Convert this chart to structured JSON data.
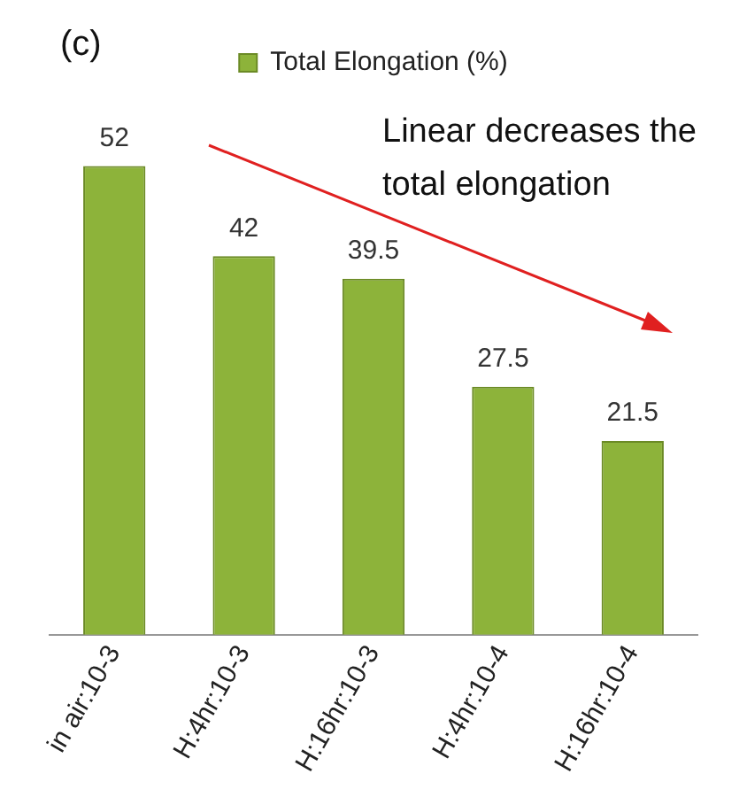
{
  "chart_data": {
    "type": "bar",
    "categories": [
      "in air:10-3",
      "H:4hr:10-3",
      "H:16hr:10-3",
      "H:4hr:10-4",
      "H:16hr:10-4"
    ],
    "series": [
      {
        "name": "Total Elongation (%)",
        "color": "#8db33a",
        "values": [
          52,
          42,
          39.5,
          27.5,
          21.5
        ]
      }
    ],
    "data_labels": true,
    "legend": "top",
    "grid": false,
    "annotations": [
      "(c)",
      "Linear decreases the total elongation"
    ]
  }
}
